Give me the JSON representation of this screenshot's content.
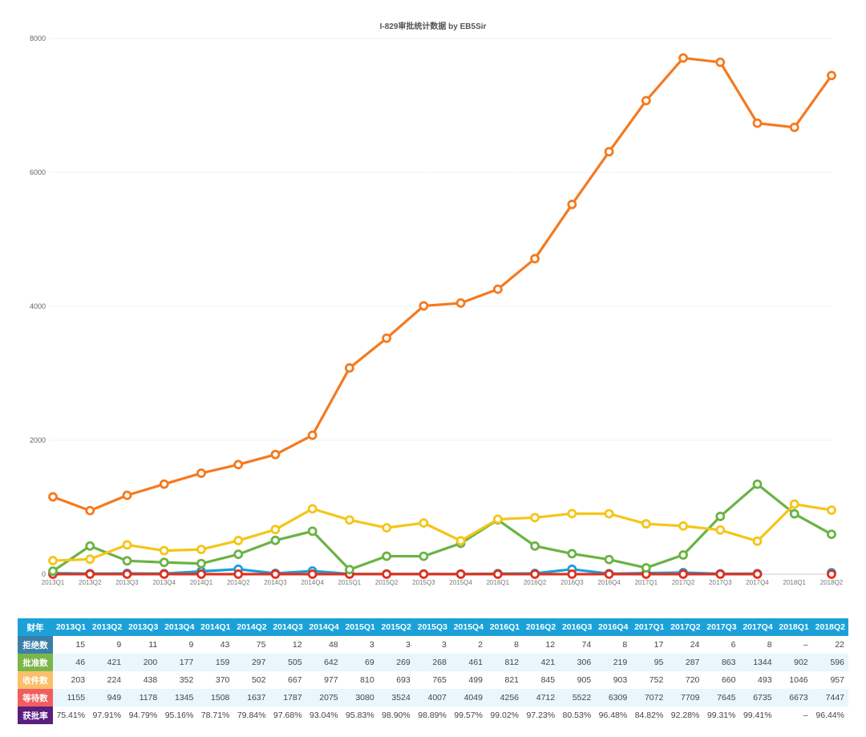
{
  "chart_data": {
    "type": "line",
    "title": "I-829审批统计数据 by EB5Sir",
    "xlabel": "",
    "ylabel": "",
    "ylim": [
      0,
      8000
    ],
    "yticks": [
      0,
      2000,
      4000,
      6000,
      8000
    ],
    "grid": true,
    "legend": "table-below",
    "categories": [
      "2013Q1",
      "2013Q2",
      "2013Q3",
      "2013Q4",
      "2014Q1",
      "2014Q2",
      "2014Q3",
      "2014Q4",
      "2015Q1",
      "2015Q2",
      "2015Q3",
      "2015Q4",
      "2016Q1",
      "2016Q2",
      "2016Q3",
      "2016Q4",
      "2017Q1",
      "2017Q2",
      "2017Q3",
      "2017Q4",
      "2018Q1",
      "2018Q2"
    ],
    "series": [
      {
        "name": "等待数",
        "color": "#f47a1f",
        "label_color": "#f25d5d",
        "values": [
          1155,
          949,
          1178,
          1345,
          1508,
          1637,
          1787,
          2075,
          3080,
          3524,
          4007,
          4049,
          4256,
          4712,
          5522,
          6309,
          7072,
          7709,
          7645,
          6735,
          6673,
          7447
        ]
      },
      {
        "name": "收件数",
        "color": "#f5c518",
        "label_color": "#fbbf6a",
        "values": [
          203,
          224,
          438,
          352,
          370,
          502,
          667,
          977,
          810,
          693,
          765,
          499,
          821,
          845,
          905,
          903,
          752,
          720,
          660,
          493,
          1046,
          957
        ]
      },
      {
        "name": "批准数",
        "color": "#6ab344",
        "label_color": "#7ab648",
        "values": [
          46,
          421,
          200,
          177,
          159,
          297,
          505,
          642,
          69,
          269,
          268,
          461,
          812,
          421,
          306,
          219,
          95,
          287,
          863,
          1344,
          902,
          596
        ]
      },
      {
        "name": "获批率",
        "color": "#e0301e",
        "label_color": "#5a1f7e",
        "values": [
          0.7541,
          0.9791,
          0.9479,
          0.9516,
          0.7871,
          0.7984,
          0.9768,
          0.9304,
          0.9583,
          0.989,
          0.9889,
          0.9957,
          0.9902,
          0.9723,
          0.8053,
          0.9648,
          0.8482,
          0.9228,
          0.9931,
          0.9941,
          null,
          0.9644
        ]
      },
      {
        "name": "拒绝数",
        "color": "#1a9ed9",
        "label_color": "#3a7fa8",
        "values": [
          15,
          9,
          11,
          9,
          43,
          75,
          12,
          48,
          3,
          3,
          3,
          2,
          8,
          12,
          74,
          8,
          17,
          24,
          6,
          8,
          null,
          22
        ]
      }
    ]
  },
  "table": {
    "corner": "财年",
    "rows": [
      {
        "label": "拒绝数",
        "color": "#3a7fa8",
        "cells": [
          "15",
          "9",
          "11",
          "9",
          "43",
          "75",
          "12",
          "48",
          "3",
          "3",
          "3",
          "2",
          "8",
          "12",
          "74",
          "8",
          "17",
          "24",
          "6",
          "8",
          "–",
          "22"
        ]
      },
      {
        "label": "批准数",
        "color": "#7ab648",
        "cells": [
          "46",
          "421",
          "200",
          "177",
          "159",
          "297",
          "505",
          "642",
          "69",
          "269",
          "268",
          "461",
          "812",
          "421",
          "306",
          "219",
          "95",
          "287",
          "863",
          "1344",
          "902",
          "596"
        ]
      },
      {
        "label": "收件数",
        "color": "#fbbf6a",
        "cells": [
          "203",
          "224",
          "438",
          "352",
          "370",
          "502",
          "667",
          "977",
          "810",
          "693",
          "765",
          "499",
          "821",
          "845",
          "905",
          "903",
          "752",
          "720",
          "660",
          "493",
          "1046",
          "957"
        ]
      },
      {
        "label": "等待数",
        "color": "#f25d5d",
        "cells": [
          "1155",
          "949",
          "1178",
          "1345",
          "1508",
          "1637",
          "1787",
          "2075",
          "3080",
          "3524",
          "4007",
          "4049",
          "4256",
          "4712",
          "5522",
          "6309",
          "7072",
          "7709",
          "7645",
          "6735",
          "6673",
          "7447"
        ]
      },
      {
        "label": "获批率",
        "color": "#5a1f7e",
        "cells": [
          "75.41%",
          "97.91%",
          "94.79%",
          "95.16%",
          "78.71%",
          "79.84%",
          "97.68%",
          "93.04%",
          "95.83%",
          "98.90%",
          "98.89%",
          "99.57%",
          "99.02%",
          "97.23%",
          "80.53%",
          "96.48%",
          "84.82%",
          "92.28%",
          "99.31%",
          "99.41%",
          "–",
          "96.44%"
        ]
      }
    ],
    "header_color": "#1ba1d8"
  }
}
